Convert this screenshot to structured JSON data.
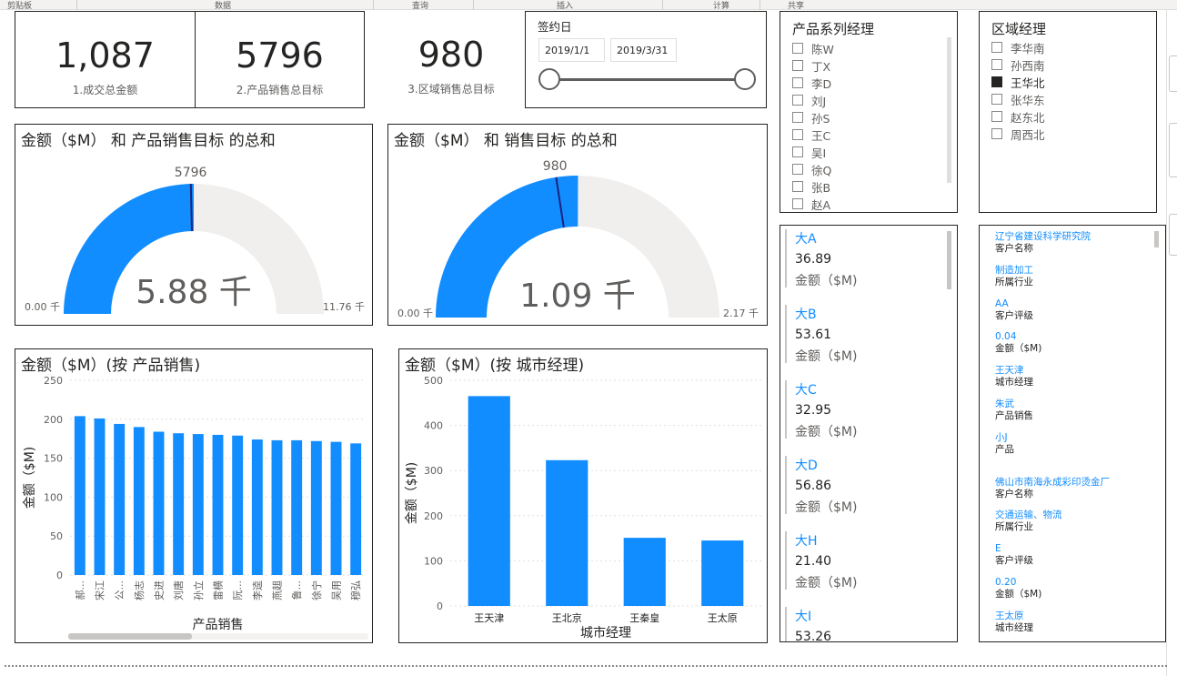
{
  "ribbon": {
    "groups": [
      "剪贴板",
      "数据",
      "查询",
      "插入",
      "计算",
      "共享"
    ]
  },
  "kpi": [
    {
      "value": "1,087",
      "label": "1.成交总金额"
    },
    {
      "value": "5796",
      "label": "2.产品销售总目标"
    },
    {
      "value": "980",
      "label": "3.区域销售总目标"
    }
  ],
  "date_slicer": {
    "title": "签约日",
    "start": "2019/1/1",
    "end": "2019/3/31"
  },
  "product_manager_slicer": {
    "title": "产品系列经理",
    "items": [
      "陈W",
      "丁X",
      "李D",
      "刘J",
      "孙S",
      "王C",
      "吴I",
      "徐Q",
      "张B",
      "赵A"
    ]
  },
  "region_manager_slicer": {
    "title": "区域经理",
    "items": [
      {
        "label": "李华南",
        "checked": false
      },
      {
        "label": "孙西南",
        "checked": false
      },
      {
        "label": "王华北",
        "checked": true
      },
      {
        "label": "张华东",
        "checked": false
      },
      {
        "label": "赵东北",
        "checked": false
      },
      {
        "label": "周西北",
        "checked": false
      }
    ]
  },
  "gauge1": {
    "title": "金额（$M） 和 产品销售目标 的总和",
    "center_label": "5.88 千",
    "target_label": "5796",
    "min_label": "0.00 千",
    "max_label": "11.76 千",
    "value": 5880,
    "min": 0,
    "max": 11760,
    "target": 5796
  },
  "gauge2": {
    "title": "金额（$M） 和 销售目标 的总和",
    "center_label": "1.09 千",
    "target_label": "980",
    "min_label": "0.00 千",
    "max_label": "2.17 千",
    "value": 1087,
    "min": 0,
    "max": 2170,
    "target": 980
  },
  "multi_row_card": {
    "rows": [
      {
        "title": "大A",
        "value": "36.89",
        "label": "金额（$M)"
      },
      {
        "title": "大B",
        "value": "53.61",
        "label": "金额（$M)"
      },
      {
        "title": "大C",
        "value": "32.95",
        "label": "金额（$M)"
      },
      {
        "title": "大D",
        "value": "56.86",
        "label": "金额（$M)"
      },
      {
        "title": "大H",
        "value": "21.40",
        "label": "金额（$M)"
      },
      {
        "title": "大I",
        "value": "53.26",
        "label": "金额（$M)"
      }
    ]
  },
  "detail_card": {
    "records": [
      [
        {
          "value": "辽宁省建设科学研究院",
          "label": "客户名称"
        },
        {
          "value": "制造加工",
          "label": "所属行业"
        },
        {
          "value": "AA",
          "label": "客户评级"
        },
        {
          "value": "0.04",
          "label": "金额（$M)"
        },
        {
          "value": "王天津",
          "label": "城市经理"
        },
        {
          "value": "朱武",
          "label": "产品销售"
        },
        {
          "value": "小J",
          "label": "产品"
        }
      ],
      [
        {
          "value": "佛山市南海永成彩印烫金厂",
          "label": "客户名称"
        },
        {
          "value": "交通运输、物流",
          "label": "所属行业"
        },
        {
          "value": "E",
          "label": "客户评级"
        },
        {
          "value": "0.20",
          "label": "金额（$M)"
        },
        {
          "value": "王太原",
          "label": "城市经理"
        }
      ]
    ]
  },
  "chart_data": [
    {
      "type": "bar",
      "title": "金额（$M）(按 产品销售)",
      "xlabel": "产品销售",
      "ylabel": "金额（$M)",
      "ylim": [
        0,
        250
      ],
      "yticks": [
        0,
        50,
        100,
        150,
        200,
        250
      ],
      "categories": [
        "郝...",
        "宋江",
        "公...",
        "杨志",
        "史进",
        "刘唐",
        "孙立",
        "雷横",
        "阮...",
        "李逵",
        "燕趄",
        "鲁...",
        "徐宁",
        "吴用",
        "穆弘"
      ],
      "values": [
        204,
        201,
        194,
        190,
        184,
        182,
        181,
        180,
        179,
        174,
        173,
        173,
        172,
        171,
        169
      ],
      "grid": true,
      "color": "#118dff"
    },
    {
      "type": "bar",
      "title": "金额（$M）(按 城市经理)",
      "xlabel": "城市经理",
      "ylabel": "金额（$M)",
      "ylim": [
        0,
        500
      ],
      "yticks": [
        0,
        100,
        200,
        300,
        400,
        500
      ],
      "categories": [
        "王天津",
        "王北京",
        "王秦皇",
        "王太原"
      ],
      "values": [
        465,
        323,
        151,
        145
      ],
      "grid": true,
      "color": "#118dff"
    }
  ],
  "colors": {
    "accent": "#118dff",
    "gauge_bg": "#f0efee",
    "target": "#1a237e"
  }
}
